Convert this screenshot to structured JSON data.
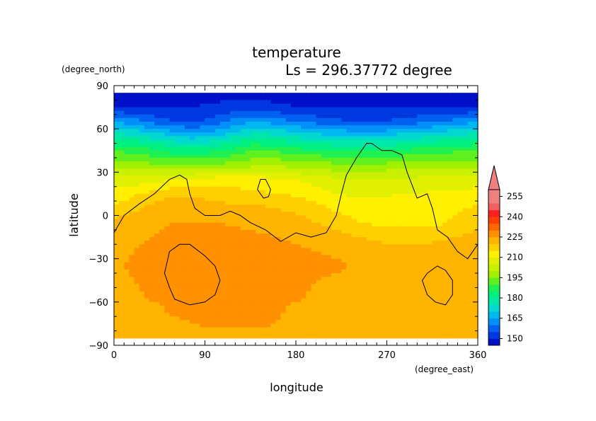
{
  "chart_data": {
    "type": "heatmap",
    "title": "temperature",
    "subtitle": "Ls = 296.37772 degree",
    "xlabel": "longitude",
    "ylabel": "latitude",
    "xunit": "(degree_east)",
    "yunit": "(degree_north)",
    "xlim": [
      0,
      360
    ],
    "ylim": [
      -90,
      90
    ],
    "xticks": [
      "0",
      "90",
      "180",
      "270",
      "360"
    ],
    "yticks": [
      "90",
      "60",
      "30",
      "0",
      "−30",
      "−60",
      "−90"
    ],
    "colorbar": {
      "levels": [
        145,
        150,
        155,
        160,
        165,
        170,
        175,
        180,
        185,
        190,
        195,
        200,
        205,
        210,
        215,
        220,
        225,
        230,
        235,
        240,
        245,
        250,
        255,
        260
      ],
      "labels": [
        "150",
        "165",
        "180",
        "195",
        "210",
        "225",
        "240",
        "255"
      ],
      "extend": "max",
      "colors": [
        "#0010c8",
        "#0038e0",
        "#0060f0",
        "#0090f8",
        "#00b8f0",
        "#00d8d0",
        "#00e8a8",
        "#00f080",
        "#20f050",
        "#60f020",
        "#a0f000",
        "#c8f000",
        "#e0f000",
        "#fff000",
        "#ffd000",
        "#ffb400",
        "#ff9000",
        "#ff6800",
        "#ff4000",
        "#ff2020",
        "#f06060",
        "#f08080"
      ]
    },
    "field": {
      "rows": [
        {
          "lat": 85,
          "values": [
            148,
            148,
            148,
            148,
            148,
            148,
            148,
            148,
            148,
            148,
            148,
            148,
            148,
            148,
            148,
            148,
            148,
            148,
            148
          ]
        },
        {
          "lat": 75,
          "values": [
            150,
            150,
            150,
            150,
            150,
            151,
            152,
            152,
            151,
            150,
            150,
            150,
            150,
            150,
            150,
            150,
            150,
            150,
            150
          ]
        },
        {
          "lat": 65,
          "values": [
            165,
            162,
            158,
            155,
            154,
            157,
            162,
            165,
            163,
            160,
            158,
            156,
            155,
            155,
            156,
            158,
            160,
            162,
            165
          ]
        },
        {
          "lat": 55,
          "values": [
            177,
            176,
            173,
            170,
            168,
            170,
            174,
            178,
            176,
            174,
            172,
            171,
            170,
            170,
            172,
            173,
            175,
            176,
            177
          ]
        },
        {
          "lat": 45,
          "values": [
            190,
            188,
            186,
            183,
            182,
            184,
            187,
            190,
            189,
            187,
            186,
            185,
            184,
            184,
            185,
            187,
            188,
            189,
            190
          ]
        },
        {
          "lat": 35,
          "values": [
            198,
            197,
            196,
            195,
            195,
            196,
            197,
            199,
            199,
            198,
            197,
            196,
            196,
            196,
            197,
            198,
            198,
            198,
            198
          ]
        },
        {
          "lat": 25,
          "values": [
            207,
            207,
            208,
            210,
            211,
            212,
            212,
            212,
            211,
            210,
            208,
            206,
            205,
            205,
            206,
            206,
            207,
            207,
            207
          ]
        },
        {
          "lat": 15,
          "values": [
            212,
            214,
            217,
            219,
            219,
            218,
            217,
            216,
            215,
            214,
            212,
            210,
            209,
            209,
            210,
            210,
            211,
            211,
            212
          ]
        },
        {
          "lat": 5,
          "values": [
            216,
            219,
            222,
            224,
            223,
            222,
            221,
            221,
            220,
            219,
            217,
            214,
            213,
            212,
            212,
            213,
            213,
            214,
            216
          ]
        },
        {
          "lat": -5,
          "values": [
            222,
            223,
            224,
            225,
            225,
            225,
            224,
            223,
            222,
            222,
            220,
            218,
            215,
            214,
            214,
            214,
            214,
            216,
            218
          ]
        },
        {
          "lat": -15,
          "values": [
            223,
            224,
            225,
            226,
            227,
            228,
            228,
            226,
            225,
            224,
            223,
            222,
            220,
            219,
            218,
            218,
            219,
            220,
            222
          ]
        },
        {
          "lat": -25,
          "values": [
            223,
            225,
            227,
            228,
            228,
            228,
            229,
            228,
            227,
            226,
            225,
            224,
            223,
            222,
            222,
            222,
            222,
            223,
            223
          ]
        },
        {
          "lat": -35,
          "values": [
            224,
            226,
            228,
            229,
            229,
            229,
            229,
            229,
            228,
            228,
            227,
            226,
            224,
            223,
            222,
            222,
            222,
            223,
            224
          ]
        },
        {
          "lat": -45,
          "values": [
            223,
            225,
            227,
            228,
            228,
            229,
            229,
            228,
            228,
            227,
            225,
            224,
            223,
            222,
            221,
            221,
            222,
            223,
            223
          ]
        },
        {
          "lat": -55,
          "values": [
            222,
            224,
            226,
            227,
            228,
            228,
            228,
            228,
            227,
            226,
            224,
            222,
            221,
            220,
            220,
            220,
            221,
            222,
            222
          ]
        },
        {
          "lat": -65,
          "values": [
            221,
            222,
            224,
            226,
            227,
            227,
            227,
            227,
            226,
            224,
            222,
            221,
            220,
            220,
            220,
            220,
            220,
            221,
            221
          ]
        },
        {
          "lat": -75,
          "values": [
            220,
            221,
            222,
            224,
            225,
            226,
            226,
            226,
            225,
            223,
            221,
            220,
            220,
            220,
            220,
            220,
            220,
            220,
            220
          ]
        },
        {
          "lat": -85,
          "values": [
            220,
            220,
            220,
            221,
            222,
            223,
            223,
            223,
            222,
            221,
            220,
            220,
            220,
            220,
            220,
            220,
            220,
            220,
            220
          ]
        }
      ],
      "lon_start": 0,
      "lon_step": 20
    },
    "contours": [
      {
        "lon": [
          0,
          10,
          25,
          40,
          55,
          65,
          72,
          75,
          80,
          90,
          105,
          115,
          125,
          135,
          150,
          165,
          180,
          195,
          210,
          220,
          225,
          230,
          240,
          250,
          255,
          265,
          275,
          285,
          290,
          300,
          310,
          315,
          320,
          330,
          340,
          350,
          360
        ],
        "lat": [
          -12,
          0,
          8,
          15,
          25,
          28,
          25,
          15,
          5,
          0,
          0,
          3,
          0,
          -5,
          -10,
          -18,
          -12,
          -15,
          -12,
          0,
          15,
          28,
          40,
          50,
          50,
          45,
          45,
          42,
          30,
          12,
          15,
          5,
          -10,
          -15,
          -25,
          -30,
          -20
        ]
      },
      {
        "lon": [
          150,
          155,
          153,
          148,
          142,
          145,
          150
        ],
        "lat": [
          25,
          18,
          13,
          12,
          18,
          25,
          25
        ]
      },
      {
        "lon": [
          55,
          65,
          75,
          90,
          100,
          105,
          100,
          90,
          75,
          60,
          55,
          50,
          55
        ],
        "lat": [
          -25,
          -20,
          -20,
          -28,
          -35,
          -45,
          -55,
          -60,
          -62,
          -58,
          -50,
          -40,
          -25
        ]
      },
      {
        "lon": [
          310,
          320,
          328,
          335,
          335,
          328,
          318,
          310,
          305,
          310
        ],
        "lat": [
          -40,
          -35,
          -38,
          -45,
          -55,
          -62,
          -60,
          -55,
          -45,
          -40
        ]
      }
    ]
  }
}
